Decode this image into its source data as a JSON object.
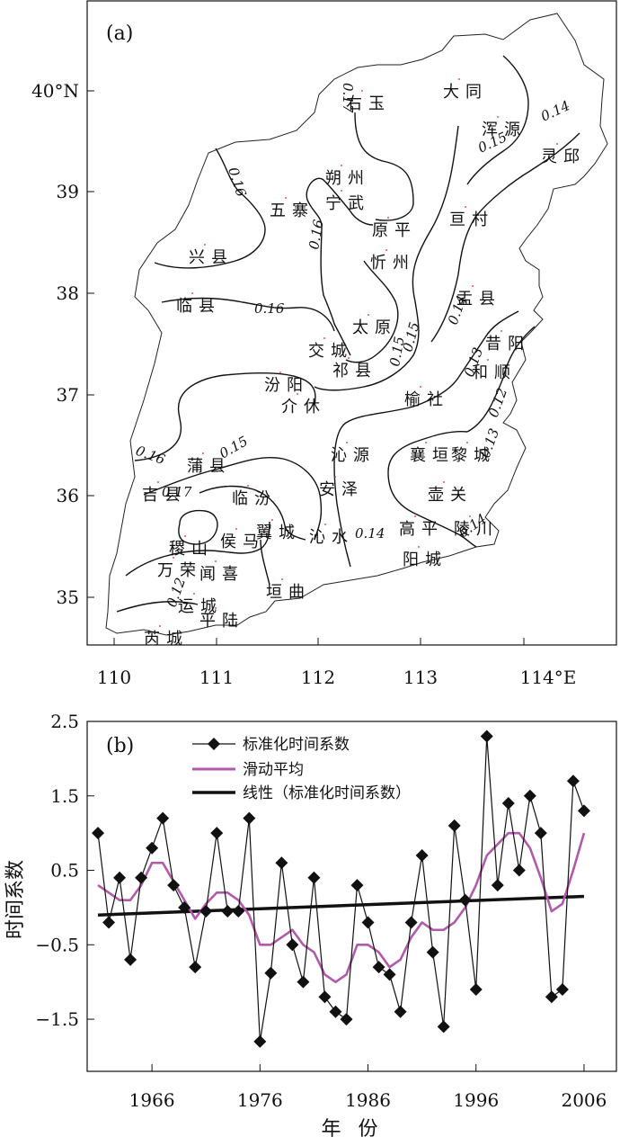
{
  "map_panel": {
    "label": "(a)",
    "y_ticks": [
      "40°N",
      "39",
      "38",
      "37",
      "36",
      "35"
    ],
    "x_ticks": [
      "110",
      "111",
      "112",
      "113",
      "114°E"
    ],
    "contour_labels": [
      "0.17",
      "0.16",
      "0.16",
      "0.16",
      "0.15",
      "0.15",
      "0.15",
      "0.14",
      "0.14",
      "0.14",
      "0.13",
      "0.13",
      "0.12",
      "0.12",
      "0.17",
      "0.14",
      "0.16",
      "0.15"
    ],
    "stations": [
      "大同",
      "右玉",
      "浑源",
      "灵邱",
      "朔州",
      "宁武",
      "五寨",
      "原平",
      "亘村",
      "兴县",
      "忻州",
      "临县",
      "太原",
      "盂县",
      "交城",
      "祁县",
      "昔阳",
      "和顺",
      "汾阳",
      "介休",
      "榆社",
      "沁源",
      "襄垣",
      "黎城",
      "蒲县",
      "吉县",
      "临汾",
      "安泽",
      "壶关",
      "翼城",
      "沁水",
      "侯马",
      "稷山",
      "万荣",
      "闻喜",
      "高平",
      "陵川",
      "阳城",
      "垣曲",
      "运城",
      "平陆",
      "芮城"
    ]
  },
  "chart_data": {
    "type": "line",
    "panel_label": "(b)",
    "ylabel": "时间系数",
    "xlabel": "年 份",
    "xlim": [
      1960,
      2009
    ],
    "ylim": [
      -2.2,
      2.5
    ],
    "x_ticks": [
      1966,
      1976,
      1986,
      1996,
      2006
    ],
    "y_ticks": [
      2.5,
      1.5,
      0.5,
      -0.5,
      -1.5
    ],
    "y_tick_labels": [
      "2.5",
      "1.5",
      "0.5",
      "−0.5",
      "−1.5"
    ],
    "legend_position": "top-left",
    "x": [
      1961,
      1962,
      1963,
      1964,
      1965,
      1966,
      1967,
      1968,
      1969,
      1970,
      1971,
      1972,
      1973,
      1974,
      1975,
      1976,
      1977,
      1978,
      1979,
      1980,
      1981,
      1982,
      1983,
      1984,
      1985,
      1986,
      1987,
      1988,
      1989,
      1990,
      1991,
      1992,
      1993,
      1994,
      1995,
      1996,
      1997,
      1998,
      1999,
      2000,
      2001,
      2002,
      2003,
      2004,
      2005,
      2006
    ],
    "series": [
      {
        "name": "标准化时间系数",
        "style": "line-diamond",
        "color": "#111111",
        "values": [
          1.0,
          -0.2,
          0.4,
          -0.7,
          0.4,
          0.8,
          1.2,
          0.3,
          0.0,
          -0.8,
          -0.05,
          1.0,
          -0.05,
          -0.05,
          1.2,
          -1.8,
          -0.88,
          0.6,
          -0.5,
          -1.0,
          0.4,
          -1.2,
          -1.4,
          -1.5,
          0.3,
          -0.2,
          -0.8,
          -0.9,
          -1.4,
          -0.2,
          0.7,
          -0.6,
          -1.6,
          1.1,
          0.1,
          -1.1,
          2.3,
          0.3,
          1.4,
          0.5,
          1.5,
          1.0,
          -1.2,
          -1.1,
          1.7,
          1.3
        ]
      },
      {
        "name": "滑动平均",
        "style": "line",
        "color": "#b05aa8",
        "values": [
          0.3,
          0.2,
          0.1,
          0.1,
          0.3,
          0.6,
          0.6,
          0.35,
          0.1,
          -0.15,
          0.05,
          0.2,
          0.2,
          0.1,
          -0.1,
          -0.5,
          -0.5,
          -0.4,
          -0.3,
          -0.5,
          -0.6,
          -0.9,
          -1.0,
          -0.9,
          -0.5,
          -0.5,
          -0.6,
          -0.8,
          -0.7,
          -0.4,
          -0.2,
          -0.3,
          -0.3,
          -0.2,
          0.0,
          0.3,
          0.7,
          0.85,
          1.0,
          1.0,
          0.8,
          0.4,
          -0.05,
          0.05,
          0.5,
          1.0
        ]
      },
      {
        "name": "线性（标准化时间系数）",
        "style": "trend",
        "color": "#111111",
        "start": {
          "x": 1961,
          "y": -0.1
        },
        "end": {
          "x": 2006,
          "y": 0.15
        }
      }
    ]
  }
}
